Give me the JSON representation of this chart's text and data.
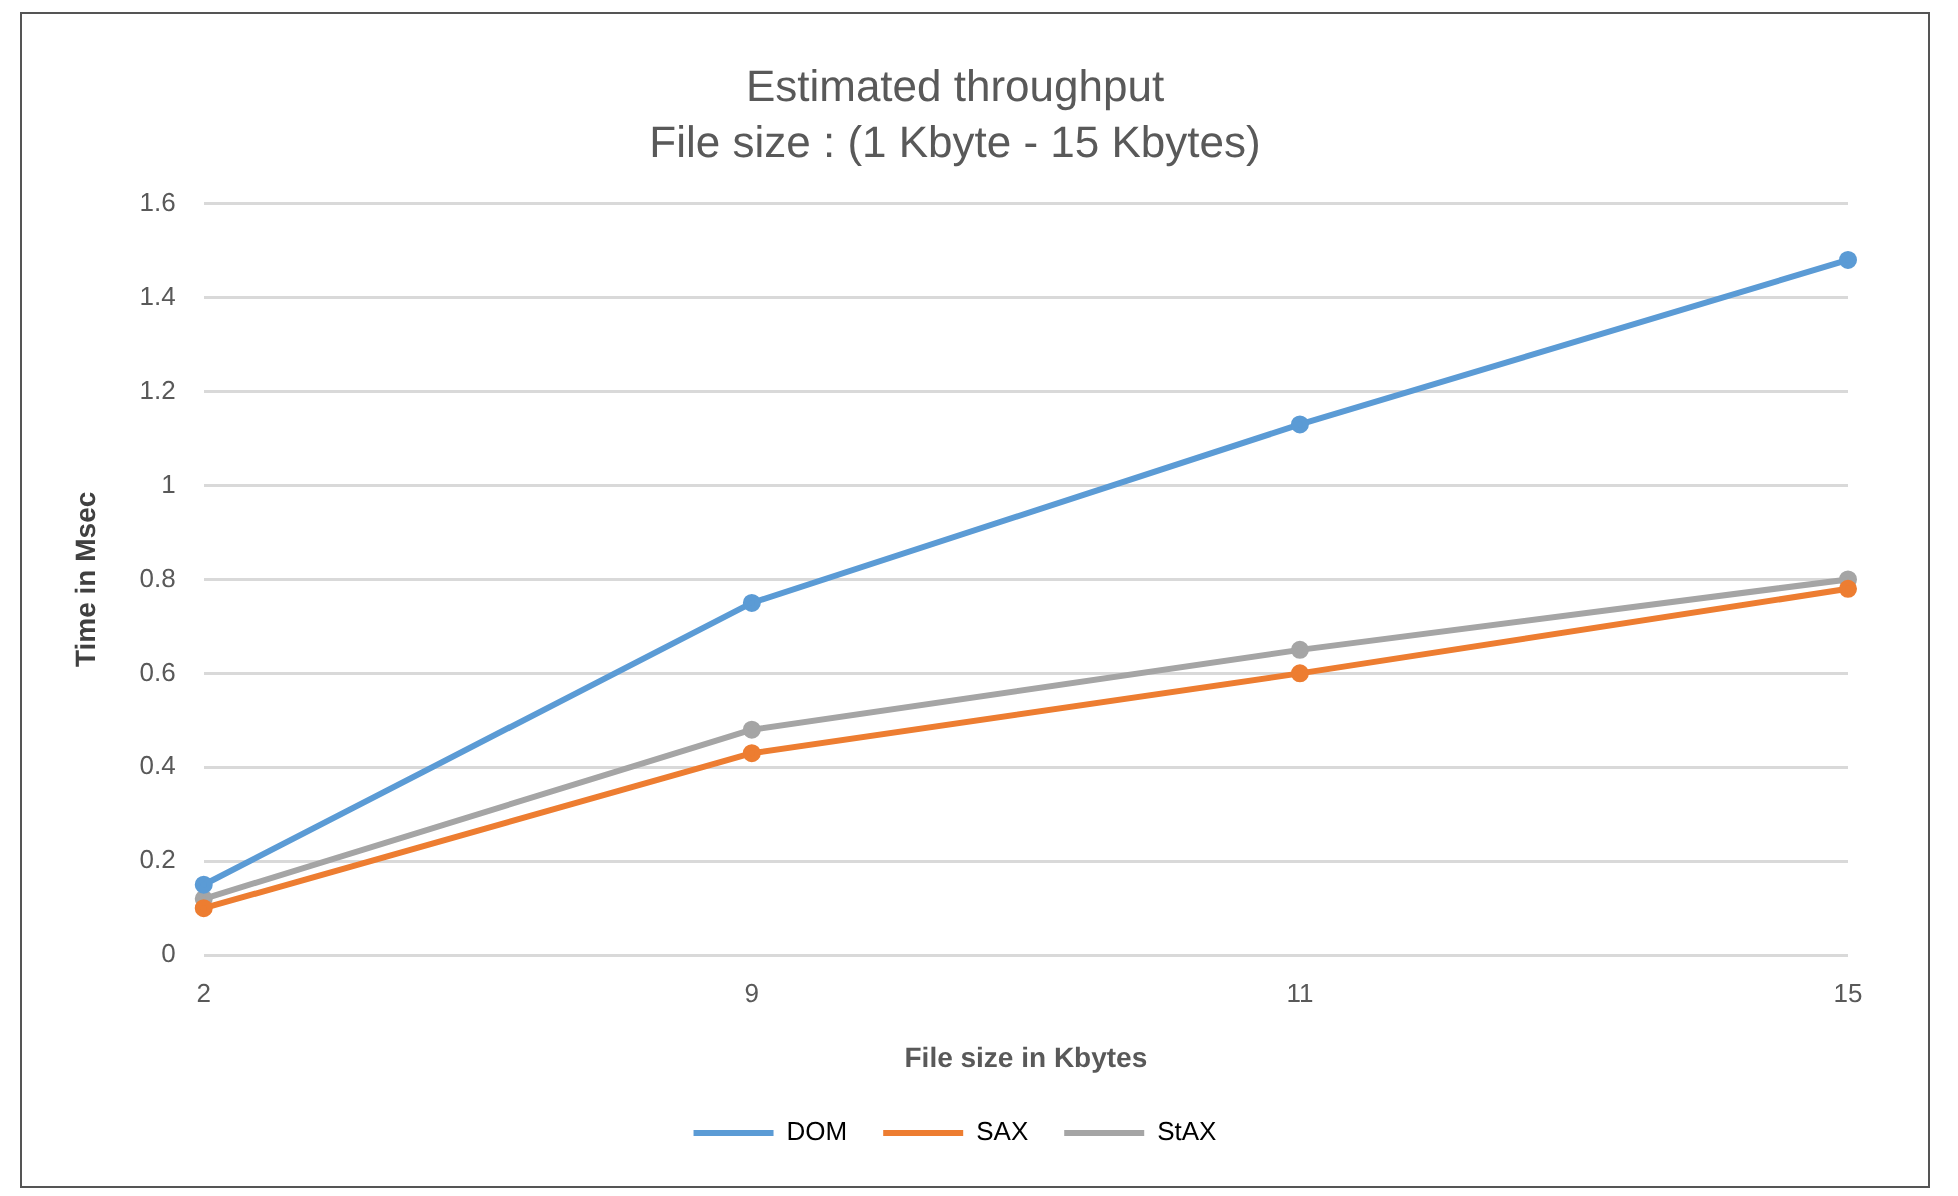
{
  "chart_data": {
    "type": "line",
    "title": "Estimated throughput",
    "subtitle": "File size : (1 Kbyte - 15 Kbytes)",
    "xlabel": "File size in Kbytes",
    "ylabel": "Time in Msec",
    "categories": [
      "2",
      "9",
      "11",
      "15"
    ],
    "series": [
      {
        "name": "DOM",
        "color": "#5b9bd5",
        "values": [
          0.15,
          0.75,
          1.13,
          1.48
        ]
      },
      {
        "name": "SAX",
        "color": "#ed7d31",
        "values": [
          0.1,
          0.43,
          0.6,
          0.78
        ]
      },
      {
        "name": "StAX",
        "color": "#a5a5a5",
        "values": [
          0.12,
          0.48,
          0.65,
          0.8
        ]
      }
    ],
    "ylim": [
      0,
      1.6
    ],
    "yticks": [
      0,
      0.2,
      0.4,
      0.6,
      0.8,
      1,
      1.2,
      1.4,
      1.6
    ],
    "grid": "y",
    "legend": "bottom",
    "marker": "circle",
    "line_style": "solid"
  }
}
